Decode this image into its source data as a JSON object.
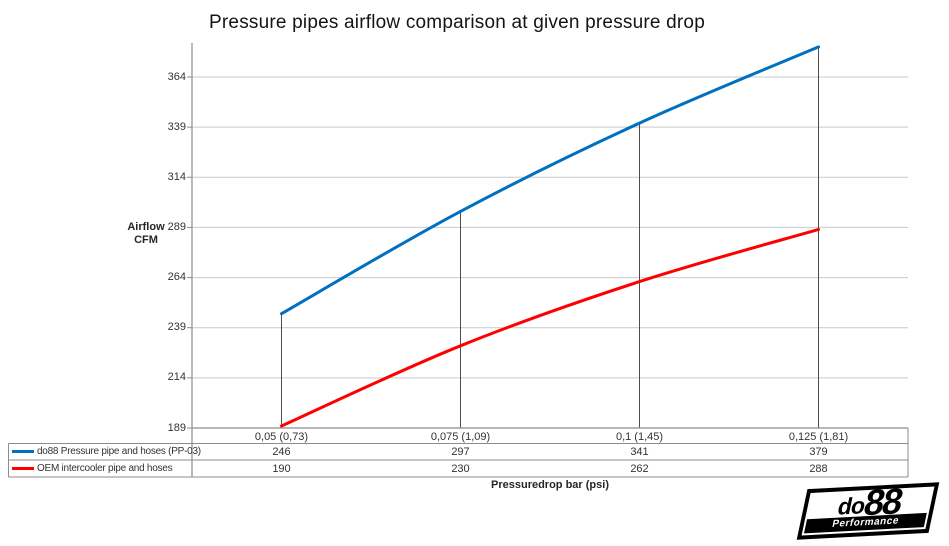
{
  "chart_data": {
    "type": "line",
    "title": "Pressure pipes airflow comparison at given pressure drop",
    "categories": [
      "0,05 (0,73)",
      "0,075 (1,09)",
      "0,1 (1,45)",
      "0,125 (1,81)"
    ],
    "series": [
      {
        "name": "do88 Pressure pipe and hoses (PP-03)",
        "color": "#0070C0",
        "values": [
          246,
          297,
          341,
          379
        ]
      },
      {
        "name": "OEM intercooler pipe and hoses",
        "color": "#FF0000",
        "values": [
          190,
          230,
          262,
          288
        ]
      }
    ],
    "xlabel": "Pressuredrop bar (psi)",
    "ylabel_lines": [
      "Airflow",
      "CFM"
    ],
    "y_ticks": [
      189,
      214,
      239,
      264,
      289,
      314,
      339,
      364
    ],
    "ylim": [
      189,
      381
    ],
    "grid": true,
    "smoothed_lines": true,
    "legend_position": "data-table-left",
    "drop_lines": true
  },
  "colors": {
    "background": "#FFFFFF",
    "gridline": "#C9C9C9",
    "axis_and_table_border": "#8C8C8C",
    "drop_line": "#4D4D4D",
    "text": "#333333",
    "title_text": "#141414"
  },
  "logo": {
    "brand": "do88",
    "brand_part1": "do",
    "brand_part2": "88",
    "subtitle": "Performance"
  }
}
